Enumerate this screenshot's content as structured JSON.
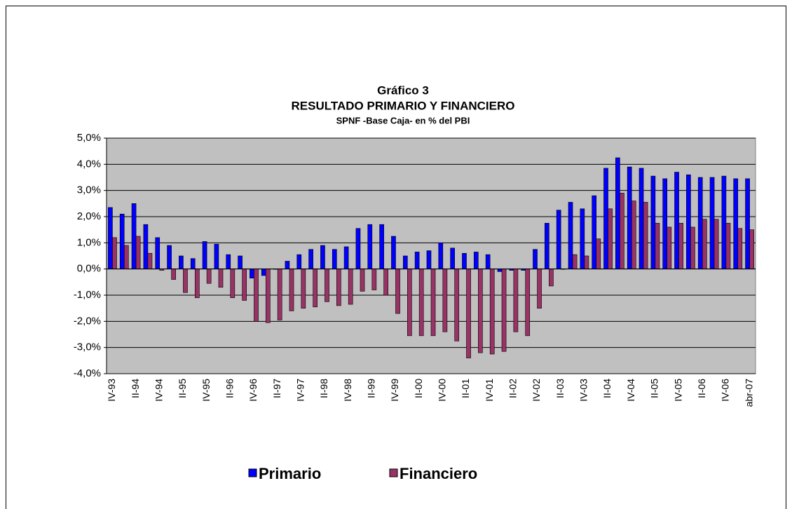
{
  "chart_data": {
    "type": "bar",
    "title": "Gráfico 3",
    "subtitle": "RESULTADO PRIMARIO Y FINANCIERO",
    "subtitle2": "SPNF -Base Caja- en % del PBI",
    "categories": [
      "IV-93",
      null,
      "II-94",
      null,
      "IV-94",
      null,
      "II-95",
      null,
      "IV-95",
      null,
      "II-96",
      null,
      "IV-96",
      null,
      "II-97",
      null,
      "IV-97",
      null,
      "II-98",
      null,
      "IV-98",
      null,
      "II-99",
      null,
      "IV-99",
      null,
      "II-00",
      null,
      "IV-00",
      null,
      "II-01",
      null,
      "IV-01",
      null,
      "II-02",
      null,
      "IV-02",
      null,
      "II-03",
      null,
      "IV-03",
      null,
      "II-04",
      null,
      "IV-04",
      null,
      "II-05",
      null,
      "IV-05",
      null,
      "II-06",
      null,
      "IV-06",
      null,
      "abr-07"
    ],
    "series": [
      {
        "name": "Primario",
        "color": "#0000ff",
        "values": [
          2.35,
          2.1,
          2.5,
          1.7,
          1.2,
          0.9,
          0.5,
          0.4,
          1.05,
          0.95,
          0.55,
          0.5,
          -0.35,
          -0.25,
          0.0,
          0.3,
          0.55,
          0.75,
          0.9,
          0.75,
          0.85,
          1.55,
          1.7,
          1.7,
          1.25,
          0.5,
          0.65,
          0.7,
          1.0,
          0.8,
          0.6,
          0.65,
          0.55,
          -0.1,
          -0.05,
          -0.05,
          0.75,
          1.75,
          2.25,
          2.55,
          2.3,
          2.8,
          3.85,
          4.25,
          3.9,
          3.85,
          3.55,
          3.45,
          3.7,
          3.6,
          3.5,
          3.5,
          3.55,
          3.45,
          3.45
        ]
      },
      {
        "name": "Financiero",
        "color": "#993366",
        "values": [
          1.2,
          0.9,
          1.25,
          0.6,
          -0.05,
          -0.4,
          -0.9,
          -1.1,
          -0.55,
          -0.7,
          -1.1,
          -1.2,
          -2.0,
          -2.05,
          -1.95,
          -1.6,
          -1.5,
          -1.45,
          -1.25,
          -1.4,
          -1.35,
          -0.85,
          -0.8,
          -1.0,
          -1.7,
          -2.55,
          -2.55,
          -2.55,
          -2.4,
          -2.75,
          -3.4,
          -3.2,
          -3.25,
          -3.15,
          -2.4,
          -2.55,
          -1.5,
          -0.65,
          0.0,
          0.55,
          0.5,
          1.15,
          2.3,
          2.9,
          2.6,
          2.55,
          1.75,
          1.6,
          1.75,
          1.6,
          1.9,
          1.9,
          1.75,
          1.55,
          1.5
        ]
      }
    ],
    "ylim": [
      -4,
      5
    ],
    "yticks": [
      {
        "value": -4,
        "label": "-4,0%"
      },
      {
        "value": -3,
        "label": "-3,0%"
      },
      {
        "value": -2,
        "label": "-2,0%"
      },
      {
        "value": -1,
        "label": "-1,0%"
      },
      {
        "value": 0,
        "label": "0,0%"
      },
      {
        "value": 1,
        "label": "1,0%"
      },
      {
        "value": 2,
        "label": "2,0%"
      },
      {
        "value": 3,
        "label": "3,0%"
      },
      {
        "value": 4,
        "label": "4,0%"
      },
      {
        "value": 5,
        "label": "5,0%"
      }
    ],
    "grid": true,
    "legend": "bottom"
  }
}
